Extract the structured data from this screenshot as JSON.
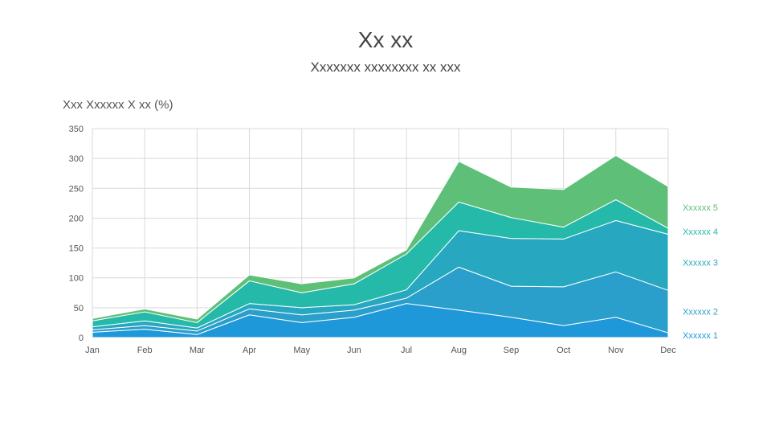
{
  "chart_data": {
    "type": "area",
    "stacked": true,
    "title": "Xx xx",
    "subtitle": "Xxxxxxx xxxxxxxx xx xxx",
    "ylabel": "Xxx Xxxxxx X xx (%)",
    "xlabel": "",
    "ylim": [
      0,
      350
    ],
    "yticks": [
      0,
      50,
      100,
      150,
      200,
      250,
      300,
      350
    ],
    "grid": true,
    "legend": "right, inline at series end",
    "categories": [
      "Jan",
      "Feb",
      "Mar",
      "Apr",
      "May",
      "Jun",
      "Jul",
      "Aug",
      "Sep",
      "Oct",
      "Nov",
      "Dec"
    ],
    "series": [
      {
        "name": "Xxxxxx 1",
        "color": "#1e98d8",
        "values": [
          9,
          14,
          5,
          38,
          25,
          34,
          57,
          46,
          34,
          20,
          34,
          8
        ]
      },
      {
        "name": "Xxxxxx 2",
        "color": "#2a9fcc",
        "values": [
          4,
          6,
          6,
          10,
          13,
          12,
          9,
          72,
          52,
          65,
          76,
          71
        ]
      },
      {
        "name": "Xxxxxx 3",
        "color": "#27a8c0",
        "values": [
          5,
          8,
          5,
          9,
          12,
          9,
          14,
          61,
          80,
          80,
          86,
          94
        ]
      },
      {
        "name": "Xxxxxx 4",
        "color": "#25b9aa",
        "values": [
          10,
          15,
          9,
          38,
          25,
          35,
          60,
          48,
          35,
          20,
          35,
          10
        ]
      },
      {
        "name": "Xxxxxx 5",
        "color": "#5ec078",
        "values": [
          4,
          5,
          6,
          10,
          15,
          10,
          7,
          68,
          51,
          63,
          74,
          70
        ]
      }
    ]
  }
}
